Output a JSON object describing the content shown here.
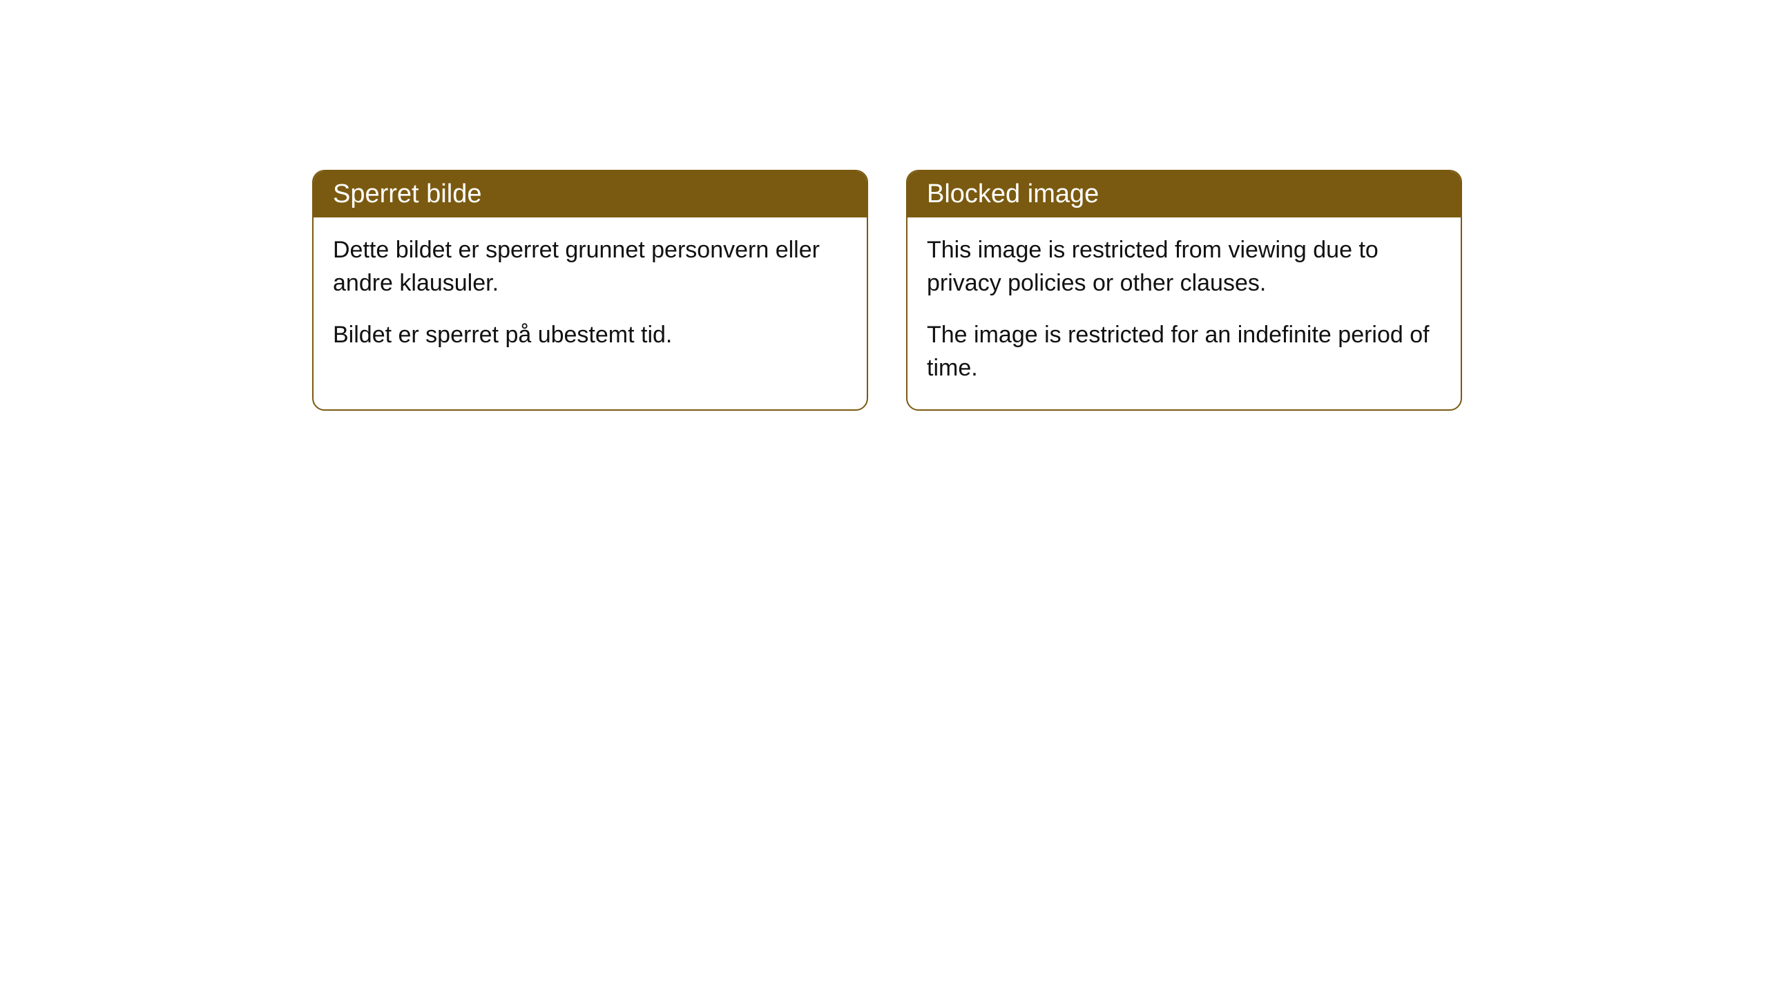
{
  "notices": [
    {
      "title": "Sperret bilde",
      "paragraph1": "Dette bildet er sperret grunnet personvern eller andre klausuler.",
      "paragraph2": "Bildet er sperret på ubestemt tid."
    },
    {
      "title": "Blocked image",
      "paragraph1": "This image is restricted from viewing due to privacy policies or other clauses.",
      "paragraph2": "The image is restricted for an indefinite period of time."
    }
  ],
  "styling": {
    "header_background_color": "#7a5a10",
    "header_text_color": "#ffffff",
    "border_color": "#7a5a10",
    "body_background_color": "#ffffff",
    "body_text_color": "#111111",
    "border_radius": 18,
    "header_fontsize": 38,
    "body_fontsize": 34
  }
}
